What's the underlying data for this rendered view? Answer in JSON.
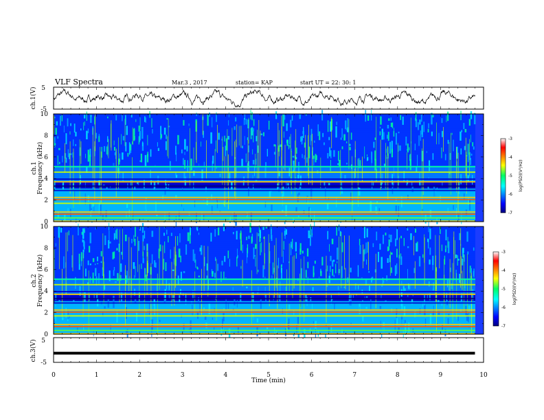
{
  "header": {
    "title": "VLF Spectra",
    "date": "Mar.3  , 2017",
    "station": "station= KAP",
    "start": "start  UT  =    22: 30: 1"
  },
  "chart_data": [
    {
      "type": "line",
      "name": "ch1-waveform",
      "ylabel": "ch.1(V)",
      "ylim": [
        -5,
        5
      ],
      "yticks": [
        "5",
        "-5"
      ],
      "xlim": [
        0,
        10
      ]
    },
    {
      "type": "heatmap",
      "name": "ch1-spectrogram",
      "ylabel": "ch.1",
      "ylabel2": "Frequency (kHz)",
      "ylim": [
        0,
        10
      ],
      "yticks": [
        "0",
        "2",
        "4",
        "6",
        "8",
        "10"
      ],
      "xlim": [
        0,
        10
      ],
      "colorbar": {
        "label": "log(PSD)(V²/Hz)",
        "ticks": [
          "-3",
          "-4",
          "-5",
          "-6",
          "-7"
        ],
        "range": [
          -7,
          -3
        ]
      }
    },
    {
      "type": "heatmap",
      "name": "ch2-spectrogram",
      "ylabel": "ch.2",
      "ylabel2": "Frequency (kHz)",
      "ylim": [
        0,
        10
      ],
      "yticks": [
        "0",
        "2",
        "4",
        "6",
        "8",
        "10"
      ],
      "xlim": [
        0,
        10
      ],
      "colorbar": {
        "label": "log(PSD)(V²/Hz)",
        "ticks": [
          "-3",
          "-4",
          "-5",
          "-6",
          "-7"
        ],
        "range": [
          -7,
          -3
        ]
      }
    },
    {
      "type": "line",
      "name": "ch3-waveform",
      "ylabel": "ch.3(V)",
      "ylim": [
        -5,
        5
      ],
      "yticks": [
        "5",
        "-5"
      ],
      "xlim": [
        0,
        10
      ],
      "x": [
        0,
        9.8
      ],
      "values": [
        -1.3,
        -1.3
      ]
    }
  ],
  "xaxis": {
    "label": "Time  (min)",
    "ticks": [
      "0",
      "1",
      "2",
      "3",
      "4",
      "5",
      "6",
      "7",
      "8",
      "9",
      "10"
    ]
  },
  "colors": {
    "line": "#000000",
    "background": "#ffffff"
  }
}
